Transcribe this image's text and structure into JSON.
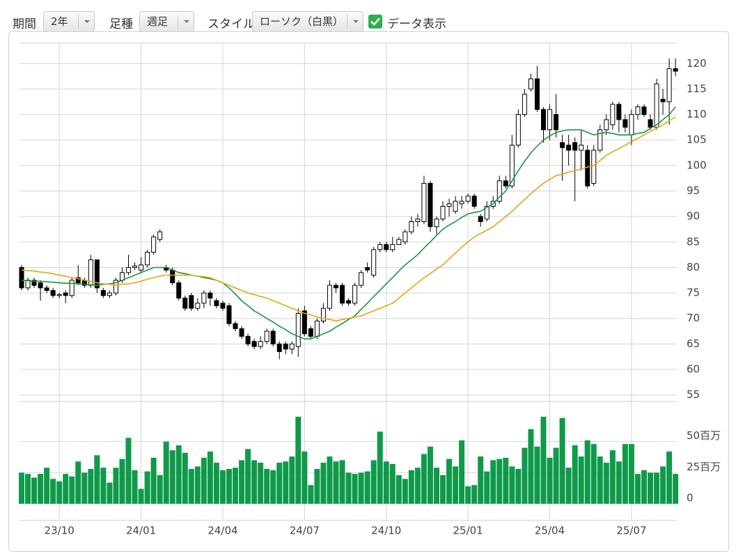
{
  "toolbar": {
    "period_label": "期間",
    "period_value": "2年",
    "interval_label": "足種",
    "interval_value": "週足",
    "style_label": "スタイル",
    "style_value": "ローソク（白黒）",
    "data_label": "データ表示"
  },
  "chart_data": {
    "type": "candlestick",
    "categories": [
      null,
      null,
      null,
      null,
      null,
      null,
      "23/10",
      null,
      null,
      null,
      null,
      null,
      null,
      null,
      null,
      null,
      null,
      null,
      null,
      "24/01",
      null,
      null,
      null,
      null,
      null,
      null,
      null,
      null,
      null,
      null,
      null,
      null,
      "24/04",
      null,
      null,
      null,
      null,
      null,
      null,
      null,
      null,
      null,
      null,
      null,
      null,
      "24/07",
      null,
      null,
      null,
      null,
      null,
      null,
      null,
      null,
      null,
      null,
      null,
      null,
      "24/10",
      null,
      null,
      null,
      null,
      null,
      null,
      null,
      null,
      null,
      null,
      null,
      null,
      "25/01",
      null,
      null,
      null,
      null,
      null,
      null,
      null,
      null,
      null,
      null,
      null,
      null,
      "25/04",
      null,
      null,
      null,
      null,
      null,
      null,
      null,
      null,
      null,
      null,
      null,
      null,
      "25/07",
      null,
      null,
      null,
      null,
      null,
      null,
      null
    ],
    "open": [
      80,
      76,
      77.5,
      77,
      76,
      75.5,
      74.5,
      75,
      74.5,
      78,
      77.5,
      76.5,
      81.5,
      75.5,
      74.5,
      75,
      77.5,
      79,
      80,
      79.5,
      80.5,
      83,
      85.5,
      80,
      79.5,
      77,
      74,
      74.5,
      72,
      73,
      75,
      73.5,
      73,
      72.5,
      69,
      68,
      66.5,
      65.5,
      64.5,
      65.5,
      67.5,
      65,
      65,
      64,
      64.5,
      71.5,
      68,
      66.5,
      69.5,
      72,
      76.5,
      76.5,
      73.5,
      73,
      76.5,
      80,
      78.5,
      83.5,
      84.5,
      83.5,
      84.5,
      85,
      87,
      89,
      89,
      96.5,
      88,
      89.5,
      92,
      91,
      92.5,
      93,
      94,
      90,
      89.5,
      92,
      93,
      97,
      96,
      104,
      110,
      115,
      117,
      111,
      107,
      110,
      104.5,
      104,
      104.5,
      103,
      103,
      96.5,
      103,
      107,
      108,
      112,
      109,
      106,
      110,
      111.5,
      109,
      107.5,
      113,
      112.5,
      119
    ],
    "high": [
      80.5,
      78,
      78,
      77.5,
      76.5,
      76,
      75,
      75.5,
      78,
      80.5,
      78,
      82.5,
      81.5,
      76,
      75.5,
      78,
      80,
      82.5,
      81,
      82,
      83.5,
      86.5,
      87.5,
      80.5,
      80,
      77.5,
      74.5,
      75,
      74,
      75.5,
      75.5,
      74,
      73.5,
      73,
      69.5,
      68.5,
      67,
      66,
      66.5,
      68,
      68,
      65.5,
      65.5,
      65.5,
      72,
      72.5,
      68.5,
      70,
      73,
      77.5,
      77,
      77,
      74,
      77,
      79.5,
      81,
      84,
      85,
      85,
      86,
      86,
      87.5,
      90,
      90.5,
      98,
      97,
      90,
      93,
      93.5,
      94,
      94,
      94.5,
      94.5,
      90.5,
      93,
      94,
      98,
      98,
      106,
      111,
      115,
      118,
      119.5,
      111.5,
      112,
      114,
      106,
      106,
      105.5,
      107,
      104,
      104,
      108,
      110,
      112.5,
      112.5,
      110,
      111,
      112,
      112,
      110,
      117,
      115,
      121,
      121
    ],
    "low": [
      75.5,
      75.5,
      76,
      73.5,
      75,
      74,
      74,
      73,
      74,
      76.5,
      76,
      76,
      75,
      74,
      74,
      74.5,
      77,
      78.5,
      79.5,
      79,
      80,
      82.5,
      85,
      79,
      76.5,
      73.5,
      71.5,
      71.5,
      71.5,
      72,
      72.5,
      72,
      71.5,
      68.5,
      67.5,
      66,
      64.5,
      64,
      64,
      65,
      64.5,
      62,
      63,
      63,
      62.5,
      66.5,
      66,
      66,
      69,
      71.5,
      75,
      72.5,
      72.5,
      72.5,
      76,
      79,
      78,
      83,
      83,
      83,
      84.5,
      84.5,
      86.5,
      88,
      88.5,
      87,
      86.5,
      89,
      90,
      90.5,
      91.5,
      92.5,
      91.5,
      88,
      89,
      91.5,
      92.5,
      95.5,
      95.5,
      103.5,
      109.5,
      114.5,
      110.5,
      104.5,
      105,
      105.5,
      97,
      100,
      93,
      99,
      95.5,
      96,
      102.5,
      106,
      107,
      106.5,
      106.5,
      104,
      109,
      109.5,
      107,
      107,
      110,
      108,
      117.5
    ],
    "close": [
      76,
      77.5,
      76.5,
      76,
      75.5,
      74.5,
      74.7,
      74.5,
      77.5,
      77,
      76.5,
      81.5,
      76,
      74.5,
      75,
      77.5,
      79,
      80,
      80.3,
      80.5,
      83,
      86,
      87,
      79.5,
      77,
      74,
      72,
      72,
      73,
      75,
      74,
      72.5,
      72,
      69,
      68,
      66.5,
      65,
      64.5,
      65.5,
      67.5,
      65,
      63.5,
      64,
      65,
      71,
      67,
      66.5,
      69.5,
      72,
      76.5,
      76,
      73,
      73,
      76.5,
      79,
      79.5,
      83.5,
      84.5,
      83.5,
      84.5,
      85.5,
      87,
      89,
      89.5,
      96.5,
      88,
      89.5,
      92,
      92.5,
      93,
      93,
      94,
      92,
      89,
      92,
      93,
      97,
      96,
      104,
      110,
      114,
      117,
      111,
      107,
      111,
      107,
      103.5,
      103,
      103,
      104,
      96,
      103,
      107,
      109,
      112,
      109,
      107.5,
      110,
      111.5,
      110,
      107.5,
      116,
      112.5,
      119,
      118.5
    ],
    "moving_averages": [
      {
        "color": "#1a9641",
        "values": [
          77.5,
          77.4,
          77.3,
          77.3,
          77.2,
          77.1,
          77.0,
          76.9,
          76.9,
          76.8,
          76.7,
          76.6,
          76.5,
          76.7,
          76.8,
          77.0,
          77.5,
          78.0,
          78.5,
          79.0,
          79.5,
          80.0,
          80.0,
          80.0,
          79.5,
          79.0,
          78.8,
          78.5,
          78.3,
          78.0,
          77.8,
          77.5,
          77.0,
          76.0,
          74.8,
          73.5,
          72.5,
          71.5,
          70.8,
          70.0,
          69.3,
          68.5,
          67.8,
          67.0,
          66.5,
          66.0,
          66.0,
          66.5,
          67.0,
          67.5,
          68.3,
          69.0,
          69.8,
          70.5,
          71.8,
          73.0,
          74.3,
          75.5,
          76.8,
          78.0,
          79.3,
          80.5,
          81.5,
          82.5,
          83.8,
          85.0,
          86.3,
          87.5,
          88.3,
          89.0,
          89.8,
          90.5,
          90.8,
          91.0,
          91.8,
          92.5,
          93.8,
          95.0,
          97.0,
          99.0,
          100.8,
          102.5,
          103.8,
          105.0,
          105.8,
          106.5,
          106.8,
          107.0,
          107.0,
          107.0,
          106.5,
          106.0,
          106.3,
          106.5,
          106.3,
          106.0,
          106.0,
          106.0,
          106.3,
          106.5,
          107.3,
          108.0,
          109.0,
          110.0,
          111.5
        ]
      },
      {
        "color": "#e8a317",
        "values": [
          79.5,
          79.4,
          79.3,
          79.1,
          79.0,
          78.8,
          78.5,
          78.3,
          78.0,
          77.8,
          77.5,
          77.3,
          77.0,
          76.8,
          76.7,
          76.5,
          76.7,
          76.8,
          77.0,
          77.3,
          77.7,
          78.0,
          78.3,
          78.5,
          78.5,
          78.5,
          78.5,
          78.5,
          78.3,
          78.2,
          78.0,
          77.5,
          77.0,
          76.5,
          76.0,
          75.5,
          75.0,
          74.7,
          74.3,
          74.0,
          73.5,
          73.0,
          72.5,
          72.0,
          71.5,
          71.0,
          70.7,
          70.3,
          70.0,
          69.8,
          69.5,
          69.8,
          70.0,
          70.3,
          70.5,
          71.0,
          71.5,
          72.0,
          72.5,
          73.0,
          74.0,
          75.0,
          76.0,
          77.0,
          78.0,
          78.8,
          79.7,
          80.5,
          81.7,
          82.8,
          84.0,
          85.0,
          86.0,
          86.7,
          87.3,
          88.0,
          89.0,
          90.0,
          91.0,
          92.2,
          93.3,
          94.5,
          95.5,
          96.5,
          97.3,
          98.0,
          98.3,
          98.7,
          99.0,
          99.3,
          99.7,
          100.0,
          101.0,
          102.0,
          102.7,
          103.3,
          104.0,
          104.7,
          105.3,
          106.0,
          106.7,
          107.3,
          108.0,
          108.8,
          109.5
        ]
      }
    ],
    "ylim": [
      54,
      124
    ],
    "yticks": [
      55,
      60,
      65,
      70,
      75,
      80,
      85,
      90,
      95,
      100,
      105,
      110,
      115,
      120
    ],
    "volume": {
      "color": "#0f9a4a",
      "values": [
        25,
        24,
        21,
        24,
        29,
        20,
        18,
        24,
        22,
        34,
        25,
        28,
        39,
        29,
        17,
        29,
        36,
        53,
        27,
        12,
        26,
        37,
        23,
        50,
        43,
        47,
        41,
        28,
        30,
        37,
        42,
        33,
        27,
        28,
        29,
        35,
        44,
        35,
        33,
        28,
        27,
        33,
        34,
        38,
        70,
        42,
        15,
        28,
        33,
        38,
        34,
        35,
        25,
        24,
        25,
        26,
        35,
        58,
        34,
        32,
        23,
        20,
        27,
        29,
        40,
        46,
        29,
        23,
        36,
        30,
        51,
        14,
        15,
        38,
        26,
        35,
        36,
        37,
        30,
        28,
        45,
        60,
        46,
        70,
        37,
        45,
        69,
        29,
        47,
        38,
        51,
        48,
        38,
        33,
        43,
        34,
        48,
        48,
        24,
        27,
        25,
        25,
        30,
        42,
        24
      ],
      "ylim": [
        0,
        75
      ],
      "yticks": [
        0,
        {
          "value": 25,
          "label": "25百万"
        },
        {
          "value": 50,
          "label": "50百万"
        }
      ]
    },
    "grid": true
  }
}
